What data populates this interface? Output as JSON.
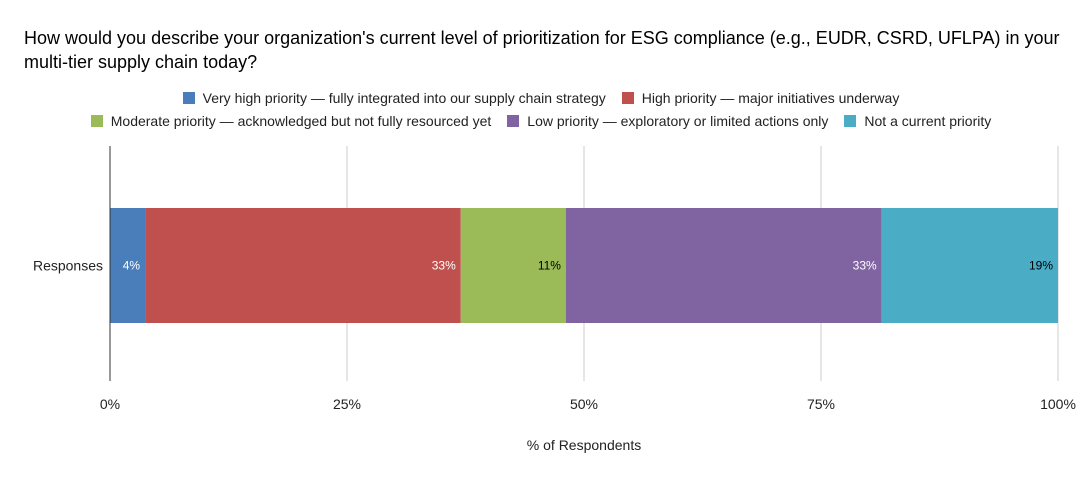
{
  "chart_data": {
    "type": "bar",
    "orientation": "horizontal",
    "stacked": true,
    "title": "How would you describe your organization's current level of prioritization for ESG compliance (e.g., EUDR, CSRD, UFLPA) in your multi-tier supply chain today?",
    "xlabel": "% of Respondents",
    "ylabel": "",
    "categories": [
      "Responses"
    ],
    "xlim": [
      0,
      100
    ],
    "xticks": [
      0,
      25,
      50,
      75,
      100
    ],
    "xtick_labels": [
      "0%",
      "25%",
      "50%",
      "75%",
      "100%"
    ],
    "grid": true,
    "legend_position": "top",
    "series": [
      {
        "name": "Very high priority — fully integrated into our supply chain strategy",
        "values": [
          3.7
        ],
        "label": "4%",
        "color": "#4a7ebb",
        "label_color": "#ffffff"
      },
      {
        "name": "High priority — major initiatives underway",
        "values": [
          33.3
        ],
        "label": "33%",
        "color": "#c0504d",
        "label_color": "#ffffff"
      },
      {
        "name": "Moderate priority — acknowledged but not fully resourced yet",
        "values": [
          11.1
        ],
        "label": "11%",
        "color": "#9bbb59",
        "label_color": "#000000"
      },
      {
        "name": "Low priority — exploratory or limited actions only",
        "values": [
          33.3
        ],
        "label": "33%",
        "color": "#8064a2",
        "label_color": "#ffffff"
      },
      {
        "name": "Not a current priority",
        "values": [
          18.6
        ],
        "label": "19%",
        "color": "#4bacc6",
        "label_color": "#000000"
      }
    ]
  }
}
